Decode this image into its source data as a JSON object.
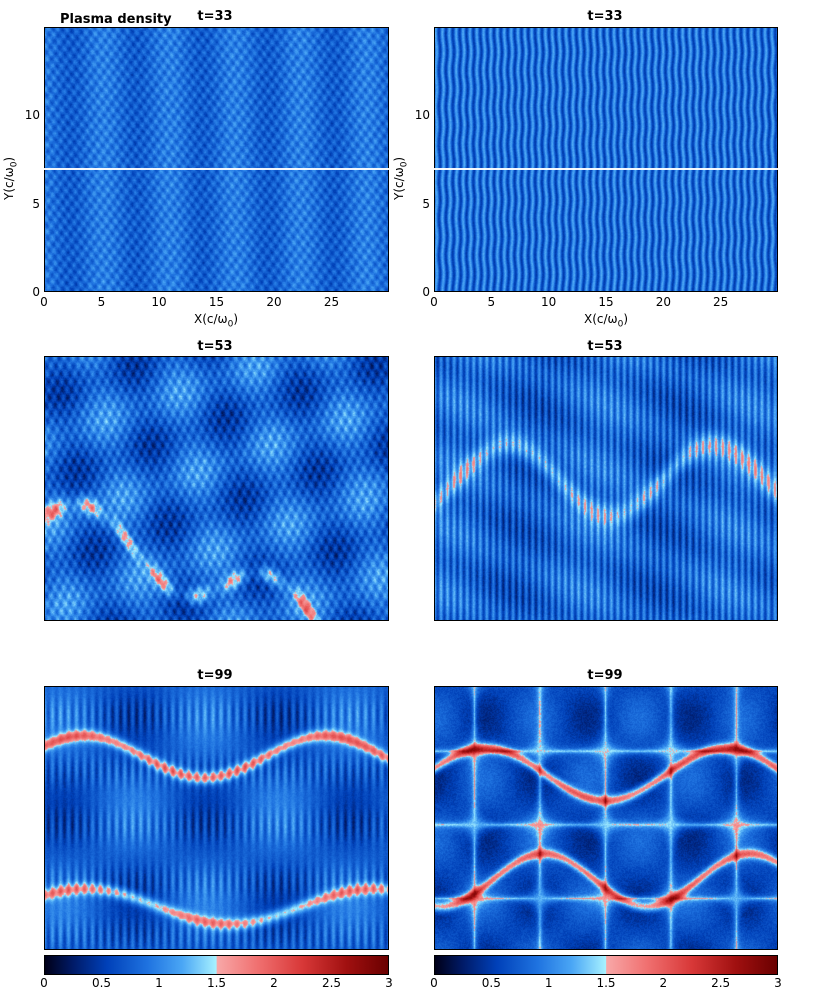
{
  "figure_label": "Plasma density",
  "panel_titles": [
    "t=33",
    "t=33",
    "t=53",
    "t=53",
    "t=99",
    "t=99"
  ],
  "axes": {
    "xlabel": "X(c/ω",
    "xlabel_sub": "0",
    "xlabel_end": ")",
    "ylabel": "Y(c/ω",
    "ylabel_sub": "0",
    "ylabel_end": ")",
    "xticks": [
      "0",
      "5",
      "10",
      "15",
      "20",
      "25"
    ],
    "yticks": [
      "0",
      "5",
      "10"
    ]
  },
  "colorbar": {
    "ticks": [
      "0",
      "0.5",
      "1",
      "1.5",
      "2",
      "2.5",
      "3"
    ],
    "range": [
      0,
      3
    ]
  },
  "chart_data": [
    {
      "type": "heatmap",
      "title": "t=33",
      "xlabel": "X(c/ω0)",
      "ylabel": "Y(c/ω0)",
      "xlim": [
        0,
        30
      ],
      "ylim": [
        0,
        15
      ],
      "value_range": [
        0,
        3
      ],
      "colormap": "blue-white-red",
      "line_y": 7
    },
    {
      "type": "heatmap",
      "title": "t=33",
      "xlabel": "X(c/ω0)",
      "ylabel": "Y(c/ω0)",
      "xlim": [
        0,
        30
      ],
      "ylim": [
        0,
        15
      ],
      "value_range": [
        0,
        3
      ],
      "colormap": "blue-white-red",
      "line_y": 7
    },
    {
      "type": "heatmap",
      "title": "t=53",
      "xlim": [
        0,
        30
      ],
      "ylim": [
        0,
        15
      ],
      "value_range": [
        0,
        3
      ],
      "colormap": "blue-white-red"
    },
    {
      "type": "heatmap",
      "title": "t=53",
      "xlim": [
        0,
        30
      ],
      "ylim": [
        0,
        15
      ],
      "value_range": [
        0,
        3
      ],
      "colormap": "blue-white-red"
    },
    {
      "type": "heatmap",
      "title": "t=99",
      "xlim": [
        0,
        30
      ],
      "ylim": [
        0,
        15
      ],
      "value_range": [
        0,
        3
      ],
      "colormap": "blue-white-red"
    },
    {
      "type": "heatmap",
      "title": "t=99",
      "xlim": [
        0,
        30
      ],
      "ylim": [
        0,
        15
      ],
      "value_range": [
        0,
        3
      ],
      "colormap": "blue-white-red"
    }
  ],
  "colors": {
    "deep": "#0a2a8a",
    "mid": "#1f6fe0",
    "light": "#8fe6ff",
    "hot": "#e03030",
    "line": "#ffffff"
  }
}
